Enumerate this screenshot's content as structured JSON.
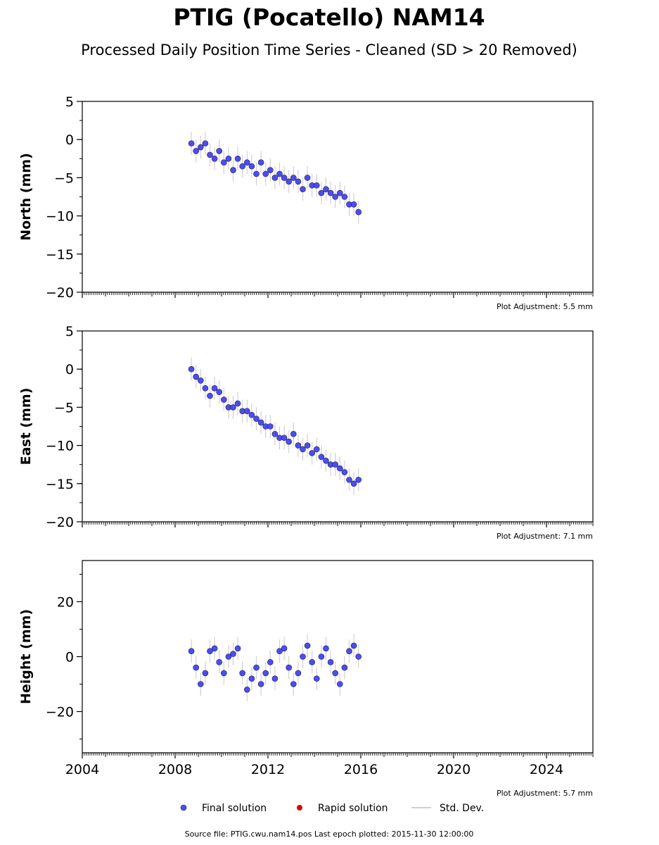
{
  "title": "PTIG (Pocatello) NAM14",
  "subtitle": "Processed Daily Position Time Series - Cleaned (SD > 20 Removed)",
  "footer": "Source file: PTIG.cwu.nam14.pos  Last epoch plotted: 2015-11-30 12:00:00",
  "legend": {
    "final_label": "Final solution",
    "rapid_label": "Rapid solution",
    "std_label": "Std. Dev.",
    "final_color": "#4b4bff",
    "rapid_color": "#e00000",
    "std_color": "#d0d0d0"
  },
  "chart_data": [
    {
      "type": "scatter",
      "ylabel": "North (mm)",
      "adjustment": "Plot Adjustment: 5.5 mm",
      "xlim": [
        2004,
        2026
      ],
      "ylim": [
        -20,
        5
      ],
      "yticks": [
        5,
        0,
        -5,
        -10,
        -15,
        -20
      ],
      "ytick_labels": [
        "5",
        "0",
        "−5",
        "−10",
        "−15",
        "−20"
      ],
      "xticks": [
        2004,
        2008,
        2012,
        2016,
        2020,
        2024
      ],
      "xtick_labels": [],
      "series": [
        {
          "x": [
            2008.7,
            2008.9,
            2009.1,
            2009.3,
            2009.5,
            2009.7,
            2009.9,
            2010.1,
            2010.3,
            2010.5,
            2010.7,
            2010.9,
            2011.1,
            2011.3,
            2011.5,
            2011.7,
            2011.9,
            2012.1,
            2012.3,
            2012.5,
            2012.7,
            2012.9,
            2013.1,
            2013.3,
            2013.5,
            2013.7,
            2013.9,
            2014.1,
            2014.3,
            2014.5,
            2014.7,
            2014.9,
            2015.1,
            2015.3,
            2015.5,
            2015.7,
            2015.9
          ],
          "y": [
            -0.5,
            -1.5,
            -1.0,
            -0.5,
            -2.0,
            -2.5,
            -1.5,
            -3.0,
            -2.5,
            -4.0,
            -2.5,
            -3.5,
            -3.0,
            -3.5,
            -4.5,
            -3.0,
            -4.5,
            -4.0,
            -5.0,
            -4.5,
            -5.0,
            -5.5,
            -5.0,
            -5.5,
            -6.5,
            -5.0,
            -6.0,
            -6.0,
            -7.0,
            -6.5,
            -7.0,
            -7.5,
            -7.0,
            -7.5,
            -8.5,
            -8.5,
            -9.5
          ]
        }
      ]
    },
    {
      "type": "scatter",
      "ylabel": "East (mm)",
      "adjustment": "Plot Adjustment: 7.1 mm",
      "xlim": [
        2004,
        2026
      ],
      "ylim": [
        -20,
        5
      ],
      "yticks": [
        5,
        0,
        -5,
        -10,
        -15,
        -20
      ],
      "ytick_labels": [
        "5",
        "0",
        "−5",
        "−10",
        "−15",
        "−20"
      ],
      "xticks": [
        2004,
        2008,
        2012,
        2016,
        2020,
        2024
      ],
      "xtick_labels": [],
      "series": [
        {
          "x": [
            2008.7,
            2008.9,
            2009.1,
            2009.3,
            2009.5,
            2009.7,
            2009.9,
            2010.1,
            2010.3,
            2010.5,
            2010.7,
            2010.9,
            2011.1,
            2011.3,
            2011.5,
            2011.7,
            2011.9,
            2012.1,
            2012.3,
            2012.5,
            2012.7,
            2012.9,
            2013.1,
            2013.3,
            2013.5,
            2013.7,
            2013.9,
            2014.1,
            2014.3,
            2014.5,
            2014.7,
            2014.9,
            2015.1,
            2015.3,
            2015.5,
            2015.7,
            2015.9
          ],
          "y": [
            0.0,
            -1.0,
            -1.5,
            -2.5,
            -3.5,
            -2.5,
            -3.0,
            -4.0,
            -5.0,
            -5.0,
            -4.5,
            -5.5,
            -5.5,
            -6.0,
            -6.5,
            -7.0,
            -7.5,
            -7.5,
            -8.5,
            -9.0,
            -9.0,
            -9.5,
            -8.5,
            -10.0,
            -10.5,
            -10.0,
            -11.0,
            -10.5,
            -11.5,
            -12.0,
            -12.5,
            -12.5,
            -13.0,
            -13.5,
            -14.5,
            -15.0,
            -14.5
          ]
        }
      ]
    },
    {
      "type": "scatter",
      "ylabel": "Height (mm)",
      "adjustment": "Plot Adjustment: 5.7 mm",
      "xlim": [
        2004,
        2026
      ],
      "ylim": [
        -35,
        35
      ],
      "yticks": [
        20,
        0,
        -20
      ],
      "ytick_labels": [
        "20",
        "0",
        "−20"
      ],
      "xticks": [
        2004,
        2008,
        2012,
        2016,
        2020,
        2024
      ],
      "xtick_labels": [
        "2004",
        "2008",
        "2012",
        "2016",
        "2020",
        "2024"
      ],
      "series": [
        {
          "x": [
            2008.7,
            2008.9,
            2009.1,
            2009.3,
            2009.5,
            2009.7,
            2009.9,
            2010.1,
            2010.3,
            2010.5,
            2010.7,
            2010.9,
            2011.1,
            2011.3,
            2011.5,
            2011.7,
            2011.9,
            2012.1,
            2012.3,
            2012.5,
            2012.7,
            2012.9,
            2013.1,
            2013.3,
            2013.5,
            2013.7,
            2013.9,
            2014.1,
            2014.3,
            2014.5,
            2014.7,
            2014.9,
            2015.1,
            2015.3,
            2015.5,
            2015.7,
            2015.9
          ],
          "y": [
            2.0,
            -4.0,
            -10.0,
            -6.0,
            2.0,
            3.0,
            -2.0,
            -6.0,
            0.0,
            1.0,
            3.0,
            -6.0,
            -12.0,
            -8.0,
            -4.0,
            -10.0,
            -6.0,
            -2.0,
            -8.0,
            2.0,
            3.0,
            -4.0,
            -10.0,
            -6.0,
            0.0,
            4.0,
            -2.0,
            -8.0,
            0.0,
            3.0,
            -2.0,
            -6.0,
            -10.0,
            -4.0,
            2.0,
            4.0,
            0.0
          ]
        }
      ]
    }
  ]
}
